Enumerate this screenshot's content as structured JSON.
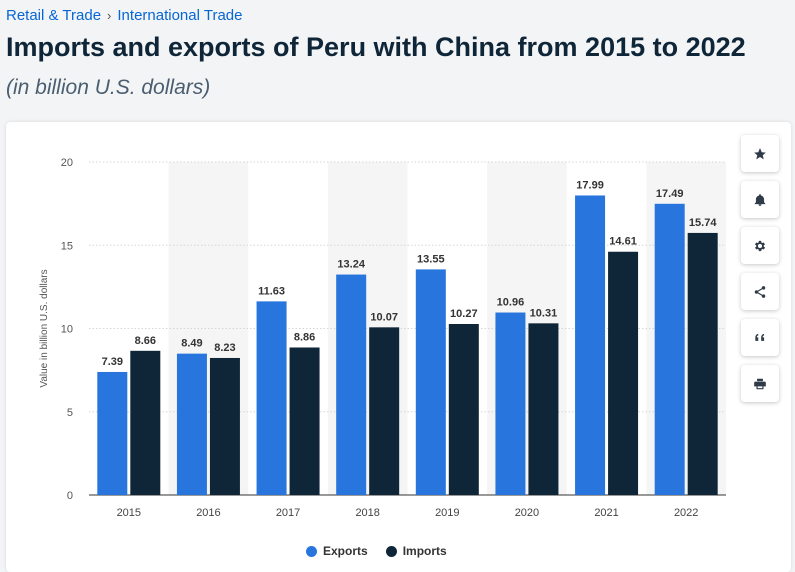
{
  "breadcrumb": {
    "items": [
      "Retail & Trade",
      "International Trade"
    ],
    "separator": "›"
  },
  "header": {
    "title": "Imports and exports of Peru with China from 2015 to 2022",
    "subtitle": "(in billion U.S. dollars)"
  },
  "toolbar": {
    "icons": [
      "star-icon",
      "bell-icon",
      "gear-icon",
      "share-icon",
      "quote-icon",
      "print-icon"
    ]
  },
  "colors": {
    "exports": "#2876dd",
    "imports": "#0f2538",
    "shade": "#f5f5f5",
    "grid": "#d6d6d6"
  },
  "chart_data": {
    "type": "bar",
    "categories": [
      "2015",
      "2016",
      "2017",
      "2018",
      "2019",
      "2020",
      "2021",
      "2022"
    ],
    "series": [
      {
        "name": "Exports",
        "values": [
          7.39,
          8.49,
          11.63,
          13.24,
          13.55,
          10.96,
          17.99,
          17.49
        ]
      },
      {
        "name": "Imports",
        "values": [
          8.66,
          8.23,
          8.86,
          10.07,
          10.27,
          10.31,
          14.61,
          15.74
        ]
      }
    ],
    "ylabel": "Value in billion U.S. dollars",
    "xlabel": "",
    "ylim": [
      0,
      20
    ],
    "yticks": [
      0,
      5,
      10,
      15,
      20
    ],
    "legend": "bottom",
    "grid": true
  }
}
